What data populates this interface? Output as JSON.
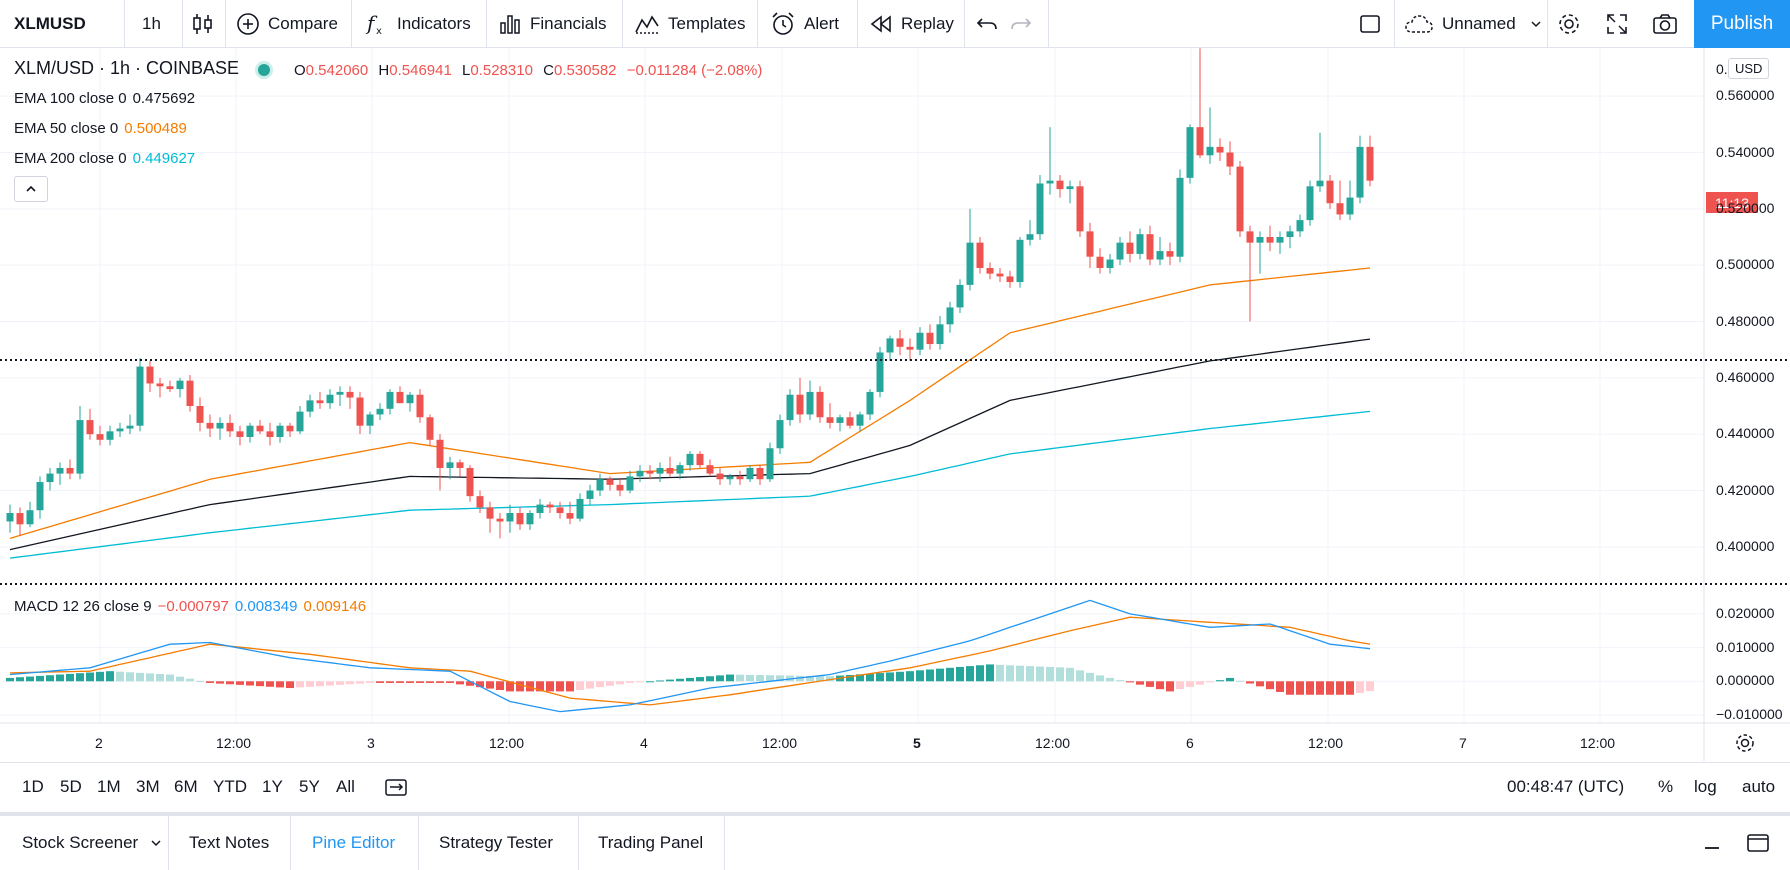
{
  "toolbar": {
    "symbol": "XLMUSD",
    "interval": "1h",
    "compare": "Compare",
    "indicators": "Indicators",
    "financials": "Financials",
    "templates": "Templates",
    "alert": "Alert",
    "replay": "Replay",
    "layout_name": "Unnamed",
    "publish": "Publish"
  },
  "legend": {
    "title": "XLM/USD · 1h · COINBASE",
    "ohlc": {
      "o_label": "O",
      "o": "0.542060",
      "h_label": "H",
      "h": "0.546941",
      "l_label": "L",
      "l": "0.528310",
      "c_label": "C",
      "c": "0.530582",
      "change": "−0.011284 (−2.08%)"
    },
    "ema100": {
      "label": "EMA 100 close 0",
      "value": "0.475692",
      "color": "#131722"
    },
    "ema50": {
      "label": "EMA 50 close 0",
      "value": "0.500489",
      "color": "#f57c00"
    },
    "ema200": {
      "label": "EMA 200 close 0",
      "value": "0.449627",
      "color": "#00bcd4"
    },
    "macd": {
      "label": "MACD 12 26 close 9",
      "hist": "−0.000797",
      "macd": "0.008349",
      "signal": "0.009146"
    }
  },
  "price_axis": {
    "currency": "USD",
    "ticks": [
      "0.560000",
      "0.540000",
      "0.520000",
      "0.500000",
      "0.480000",
      "0.460000",
      "0.440000",
      "0.420000",
      "0.400000"
    ],
    "top_partial": "0.",
    "countdown": "11:13"
  },
  "macd_axis": {
    "ticks": [
      "0.020000",
      "0.010000",
      "0.000000",
      "−0.010000"
    ]
  },
  "time_axis": {
    "ticks": [
      "2",
      "12:00",
      "3",
      "12:00",
      "4",
      "12:00",
      "5",
      "12:00",
      "6",
      "12:00",
      "7",
      "12:00"
    ]
  },
  "range_bar": {
    "ranges": [
      "1D",
      "5D",
      "1M",
      "3M",
      "6M",
      "YTD",
      "1Y",
      "5Y",
      "All"
    ],
    "clock": "00:48:47 (UTC)",
    "percent": "%",
    "log": "log",
    "auto": "auto"
  },
  "bottom_tabs": [
    "Stock Screener",
    "Text Notes",
    "Pine Editor",
    "Strategy Tester",
    "Trading Panel"
  ],
  "colors": {
    "up": "#26a69a",
    "down": "#ef5350",
    "accent": "#2196f3",
    "ema50": "#f57c00",
    "ema100": "#131722",
    "ema200": "#00bcd4"
  },
  "chart_data": {
    "type": "candlestick",
    "price_range": [
      0.39,
      0.57
    ],
    "macd_range": [
      -0.01,
      0.025
    ],
    "candles_ohlc": [
      [
        0.409,
        0.415,
        0.405,
        0.412
      ],
      [
        0.412,
        0.414,
        0.404,
        0.408
      ],
      [
        0.408,
        0.416,
        0.407,
        0.413
      ],
      [
        0.413,
        0.425,
        0.41,
        0.423
      ],
      [
        0.423,
        0.428,
        0.42,
        0.426
      ],
      [
        0.426,
        0.43,
        0.422,
        0.428
      ],
      [
        0.428,
        0.431,
        0.424,
        0.426
      ],
      [
        0.426,
        0.45,
        0.424,
        0.445
      ],
      [
        0.445,
        0.449,
        0.438,
        0.44
      ],
      [
        0.44,
        0.443,
        0.436,
        0.438
      ],
      [
        0.438,
        0.443,
        0.436,
        0.441
      ],
      [
        0.441,
        0.444,
        0.439,
        0.442
      ],
      [
        0.442,
        0.447,
        0.44,
        0.443
      ],
      [
        0.443,
        0.467,
        0.441,
        0.464
      ],
      [
        0.464,
        0.466,
        0.455,
        0.458
      ],
      [
        0.458,
        0.46,
        0.453,
        0.457
      ],
      [
        0.457,
        0.459,
        0.455,
        0.456
      ],
      [
        0.456,
        0.46,
        0.453,
        0.459
      ],
      [
        0.459,
        0.461,
        0.448,
        0.45
      ],
      [
        0.45,
        0.453,
        0.441,
        0.444
      ],
      [
        0.444,
        0.447,
        0.439,
        0.442
      ],
      [
        0.442,
        0.446,
        0.438,
        0.444
      ],
      [
        0.444,
        0.447,
        0.439,
        0.441
      ],
      [
        0.441,
        0.443,
        0.436,
        0.439
      ],
      [
        0.439,
        0.444,
        0.437,
        0.443
      ],
      [
        0.443,
        0.445,
        0.44,
        0.441
      ],
      [
        0.441,
        0.444,
        0.436,
        0.439
      ],
      [
        0.439,
        0.444,
        0.437,
        0.443
      ],
      [
        0.443,
        0.444,
        0.439,
        0.441
      ],
      [
        0.441,
        0.45,
        0.44,
        0.448
      ],
      [
        0.448,
        0.454,
        0.446,
        0.452
      ],
      [
        0.452,
        0.455,
        0.449,
        0.451
      ],
      [
        0.451,
        0.456,
        0.449,
        0.454
      ],
      [
        0.454,
        0.457,
        0.45,
        0.455
      ],
      [
        0.455,
        0.457,
        0.449,
        0.453
      ],
      [
        0.453,
        0.455,
        0.44,
        0.443
      ],
      [
        0.443,
        0.448,
        0.44,
        0.447
      ],
      [
        0.447,
        0.451,
        0.445,
        0.449
      ],
      [
        0.449,
        0.456,
        0.447,
        0.455
      ],
      [
        0.455,
        0.457,
        0.451,
        0.451
      ],
      [
        0.451,
        0.455,
        0.448,
        0.454
      ],
      [
        0.454,
        0.456,
        0.444,
        0.446
      ],
      [
        0.446,
        0.447,
        0.436,
        0.438
      ],
      [
        0.438,
        0.44,
        0.42,
        0.428
      ],
      [
        0.428,
        0.432,
        0.424,
        0.43
      ],
      [
        0.43,
        0.431,
        0.425,
        0.428
      ],
      [
        0.428,
        0.429,
        0.416,
        0.418
      ],
      [
        0.418,
        0.42,
        0.412,
        0.414
      ],
      [
        0.414,
        0.416,
        0.405,
        0.41
      ],
      [
        0.41,
        0.412,
        0.403,
        0.409
      ],
      [
        0.409,
        0.415,
        0.405,
        0.412
      ],
      [
        0.412,
        0.414,
        0.406,
        0.408
      ],
      [
        0.408,
        0.413,
        0.406,
        0.412
      ],
      [
        0.412,
        0.417,
        0.41,
        0.415
      ],
      [
        0.415,
        0.416,
        0.412,
        0.414
      ],
      [
        0.414,
        0.416,
        0.41,
        0.412
      ],
      [
        0.412,
        0.416,
        0.408,
        0.41
      ],
      [
        0.41,
        0.419,
        0.409,
        0.417
      ],
      [
        0.417,
        0.422,
        0.415,
        0.42
      ],
      [
        0.42,
        0.426,
        0.418,
        0.424
      ],
      [
        0.424,
        0.425,
        0.42,
        0.422
      ],
      [
        0.422,
        0.424,
        0.418,
        0.42
      ],
      [
        0.42,
        0.427,
        0.419,
        0.425
      ],
      [
        0.425,
        0.429,
        0.423,
        0.427
      ],
      [
        0.427,
        0.429,
        0.424,
        0.426
      ],
      [
        0.426,
        0.43,
        0.423,
        0.428
      ],
      [
        0.428,
        0.432,
        0.425,
        0.426
      ],
      [
        0.426,
        0.43,
        0.424,
        0.429
      ],
      [
        0.429,
        0.434,
        0.427,
        0.433
      ],
      [
        0.433,
        0.434,
        0.428,
        0.429
      ],
      [
        0.429,
        0.431,
        0.425,
        0.426
      ],
      [
        0.426,
        0.428,
        0.422,
        0.424
      ],
      [
        0.424,
        0.426,
        0.422,
        0.425
      ],
      [
        0.425,
        0.427,
        0.422,
        0.424
      ],
      [
        0.424,
        0.429,
        0.423,
        0.428
      ],
      [
        0.428,
        0.429,
        0.422,
        0.424
      ],
      [
        0.424,
        0.437,
        0.423,
        0.435
      ],
      [
        0.435,
        0.447,
        0.433,
        0.445
      ],
      [
        0.445,
        0.456,
        0.443,
        0.454
      ],
      [
        0.454,
        0.46,
        0.444,
        0.447
      ],
      [
        0.447,
        0.459,
        0.445,
        0.455
      ],
      [
        0.455,
        0.457,
        0.444,
        0.446
      ],
      [
        0.446,
        0.451,
        0.442,
        0.444
      ],
      [
        0.444,
        0.447,
        0.441,
        0.446
      ],
      [
        0.446,
        0.448,
        0.442,
        0.443
      ],
      [
        0.443,
        0.448,
        0.441,
        0.447
      ],
      [
        0.447,
        0.456,
        0.445,
        0.455
      ],
      [
        0.455,
        0.471,
        0.453,
        0.469
      ],
      [
        0.469,
        0.475,
        0.466,
        0.474
      ],
      [
        0.474,
        0.477,
        0.468,
        0.471
      ],
      [
        0.471,
        0.474,
        0.466,
        0.47
      ],
      [
        0.47,
        0.478,
        0.468,
        0.476
      ],
      [
        0.476,
        0.479,
        0.47,
        0.472
      ],
      [
        0.472,
        0.482,
        0.47,
        0.479
      ],
      [
        0.479,
        0.487,
        0.476,
        0.485
      ],
      [
        0.485,
        0.495,
        0.483,
        0.493
      ],
      [
        0.493,
        0.52,
        0.491,
        0.508
      ],
      [
        0.508,
        0.51,
        0.497,
        0.499
      ],
      [
        0.499,
        0.501,
        0.495,
        0.497
      ],
      [
        0.497,
        0.499,
        0.494,
        0.496
      ],
      [
        0.496,
        0.498,
        0.492,
        0.494
      ],
      [
        0.494,
        0.51,
        0.492,
        0.509
      ],
      [
        0.509,
        0.516,
        0.507,
        0.511
      ],
      [
        0.511,
        0.532,
        0.509,
        0.529
      ],
      [
        0.529,
        0.549,
        0.525,
        0.53
      ],
      [
        0.53,
        0.532,
        0.524,
        0.527
      ],
      [
        0.527,
        0.53,
        0.522,
        0.528
      ],
      [
        0.528,
        0.53,
        0.51,
        0.512
      ],
      [
        0.512,
        0.515,
        0.499,
        0.503
      ],
      [
        0.503,
        0.506,
        0.497,
        0.499
      ],
      [
        0.499,
        0.504,
        0.497,
        0.502
      ],
      [
        0.502,
        0.51,
        0.5,
        0.508
      ],
      [
        0.508,
        0.512,
        0.501,
        0.504
      ],
      [
        0.504,
        0.513,
        0.502,
        0.511
      ],
      [
        0.511,
        0.514,
        0.5,
        0.502
      ],
      [
        0.502,
        0.51,
        0.5,
        0.505
      ],
      [
        0.505,
        0.508,
        0.5,
        0.503
      ],
      [
        0.503,
        0.534,
        0.501,
        0.531
      ],
      [
        0.531,
        0.55,
        0.529,
        0.549
      ],
      [
        0.549,
        0.577,
        0.538,
        0.539
      ],
      [
        0.539,
        0.556,
        0.536,
        0.542
      ],
      [
        0.542,
        0.545,
        0.537,
        0.54
      ],
      [
        0.54,
        0.544,
        0.532,
        0.535
      ],
      [
        0.535,
        0.537,
        0.51,
        0.512
      ],
      [
        0.512,
        0.514,
        0.48,
        0.508
      ],
      [
        0.508,
        0.512,
        0.497,
        0.51
      ],
      [
        0.51,
        0.514,
        0.505,
        0.508
      ],
      [
        0.508,
        0.512,
        0.504,
        0.51
      ],
      [
        0.51,
        0.514,
        0.506,
        0.512
      ],
      [
        0.512,
        0.518,
        0.51,
        0.516
      ],
      [
        0.516,
        0.53,
        0.514,
        0.528
      ],
      [
        0.528,
        0.547,
        0.526,
        0.53
      ],
      [
        0.53,
        0.532,
        0.52,
        0.522
      ],
      [
        0.522,
        0.53,
        0.516,
        0.518
      ],
      [
        0.518,
        0.53,
        0.516,
        0.524
      ],
      [
        0.524,
        0.546,
        0.522,
        0.542
      ],
      [
        0.542,
        0.546,
        0.528,
        0.53
      ]
    ],
    "ema50_anchors": [
      [
        0,
        0.403
      ],
      [
        20,
        0.424
      ],
      [
        40,
        0.437
      ],
      [
        60,
        0.426
      ],
      [
        80,
        0.43
      ],
      [
        90,
        0.452
      ],
      [
        100,
        0.476
      ],
      [
        120,
        0.493
      ],
      [
        140,
        0.5005
      ]
    ],
    "ema100_anchors": [
      [
        0,
        0.399
      ],
      [
        20,
        0.415
      ],
      [
        40,
        0.425
      ],
      [
        60,
        0.424
      ],
      [
        80,
        0.426
      ],
      [
        90,
        0.436
      ],
      [
        100,
        0.452
      ],
      [
        120,
        0.466
      ],
      [
        140,
        0.4757
      ]
    ],
    "ema200_anchors": [
      [
        0,
        0.396
      ],
      [
        20,
        0.405
      ],
      [
        40,
        0.413
      ],
      [
        60,
        0.415
      ],
      [
        80,
        0.418
      ],
      [
        90,
        0.425
      ],
      [
        100,
        0.433
      ],
      [
        120,
        0.442
      ],
      [
        140,
        0.4496
      ]
    ],
    "macd_line_anchors": [
      [
        0,
        0.002
      ],
      [
        8,
        0.004
      ],
      [
        16,
        0.011
      ],
      [
        20,
        0.0115
      ],
      [
        28,
        0.007
      ],
      [
        36,
        0.004
      ],
      [
        44,
        0.003
      ],
      [
        50,
        -0.006
      ],
      [
        55,
        -0.009
      ],
      [
        62,
        -0.007
      ],
      [
        70,
        -0.002
      ],
      [
        82,
        0.002
      ],
      [
        88,
        0.006
      ],
      [
        96,
        0.012
      ],
      [
        104,
        0.02
      ],
      [
        108,
        0.024
      ],
      [
        112,
        0.02
      ],
      [
        120,
        0.016
      ],
      [
        126,
        0.017
      ],
      [
        132,
        0.011
      ],
      [
        138,
        0.009
      ],
      [
        140,
        0.0083
      ]
    ],
    "signal_line_anchors": [
      [
        0,
        0.0025
      ],
      [
        8,
        0.003
      ],
      [
        20,
        0.011
      ],
      [
        30,
        0.008
      ],
      [
        40,
        0.004
      ],
      [
        46,
        0.003
      ],
      [
        56,
        -0.005
      ],
      [
        64,
        -0.007
      ],
      [
        72,
        -0.004
      ],
      [
        82,
        0.0005
      ],
      [
        90,
        0.004
      ],
      [
        98,
        0.009
      ],
      [
        106,
        0.015
      ],
      [
        112,
        0.019
      ],
      [
        120,
        0.0175
      ],
      [
        128,
        0.016
      ],
      [
        134,
        0.012
      ],
      [
        140,
        0.0091
      ]
    ],
    "histogram_anchors": [
      [
        0,
        0.001
      ],
      [
        10,
        0.003
      ],
      [
        16,
        0.002
      ],
      [
        20,
        -0.0005
      ],
      [
        28,
        -0.002
      ],
      [
        36,
        -0.0005
      ],
      [
        44,
        -0.0005
      ],
      [
        50,
        -0.003
      ],
      [
        56,
        -0.003
      ],
      [
        62,
        -0.0005
      ],
      [
        72,
        0.002
      ],
      [
        82,
        0.0015
      ],
      [
        90,
        0.003
      ],
      [
        98,
        0.005
      ],
      [
        106,
        0.004
      ],
      [
        110,
        0.001
      ],
      [
        116,
        -0.003
      ],
      [
        122,
        0.001
      ],
      [
        128,
        -0.004
      ],
      [
        134,
        -0.004
      ],
      [
        140,
        -0.0008
      ]
    ]
  }
}
